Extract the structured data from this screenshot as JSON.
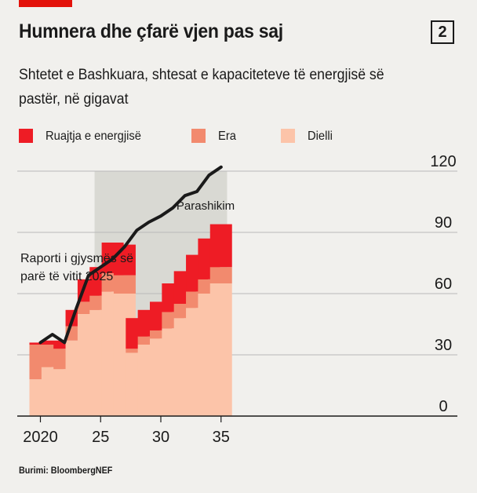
{
  "header": {
    "title": "Humnera dhe çfarë vjen pas saj",
    "badge": "2",
    "subtitle": "Shtetet e Bashkuara, shtesat e kapaciteteve të energjisë së pastër, në gigavat"
  },
  "footer": {
    "source": "Burimi: BloombergNEF"
  },
  "colors": {
    "storage": "#ee1c25",
    "wind": "#f28a6e",
    "solar": "#fcc4a9",
    "line": "#1a1a1a",
    "forecast_shade": "#d9d9d3",
    "grid": "#b9b9b9",
    "background": "#f1f0ed"
  },
  "chart_data": {
    "type": "bar",
    "stacked": true,
    "categories": [
      "2020",
      "2021",
      "2022",
      "2023",
      "2024",
      "2025",
      "2026",
      "2027",
      "2028",
      "2029",
      "2030",
      "2031",
      "2032",
      "2033",
      "2034",
      "2035"
    ],
    "x_tick_labels": [
      "2020",
      "25",
      "30",
      "35"
    ],
    "x_tick_years": [
      2020,
      2025,
      2030,
      2035
    ],
    "series": [
      {
        "name": "Dielli",
        "color_key": "solar",
        "values": [
          18,
          24,
          23,
          37,
          50,
          52,
          61,
          60,
          31,
          35,
          38,
          43,
          48,
          53,
          60,
          65
        ]
      },
      {
        "name": "Era",
        "color_key": "wind",
        "values": [
          17,
          11,
          10,
          7,
          6,
          7,
          9,
          9,
          2,
          4,
          4,
          8,
          7,
          8,
          7,
          8
        ]
      },
      {
        "name": "Ruajtja e energjisë",
        "color_key": "storage",
        "values": [
          1,
          2,
          3,
          8,
          11,
          14,
          15,
          15,
          15,
          13,
          14,
          14,
          16,
          18,
          20,
          21
        ]
      }
    ],
    "line": {
      "name": "Raporti i gjysmës së parë të vitit 2025",
      "x": [
        2020,
        2021,
        2022,
        2023,
        2024,
        2025,
        2026,
        2027,
        2028,
        2029,
        2030,
        2031,
        2032,
        2033,
        2034,
        2035
      ],
      "values": [
        36,
        40,
        36,
        53,
        69,
        73,
        77,
        83,
        91,
        95,
        98,
        102,
        108,
        110,
        118,
        122
      ]
    },
    "forecast": {
      "label": "Parashikim",
      "from_year": 2024.5,
      "to_year": 2035.5
    },
    "y_ticks": [
      0,
      30,
      60,
      90,
      120
    ],
    "ylim": [
      0,
      125
    ],
    "xlim": [
      2019.5,
      2035.5
    ],
    "grid": true,
    "y_axis_position": "right",
    "legend_position": "top-left"
  }
}
